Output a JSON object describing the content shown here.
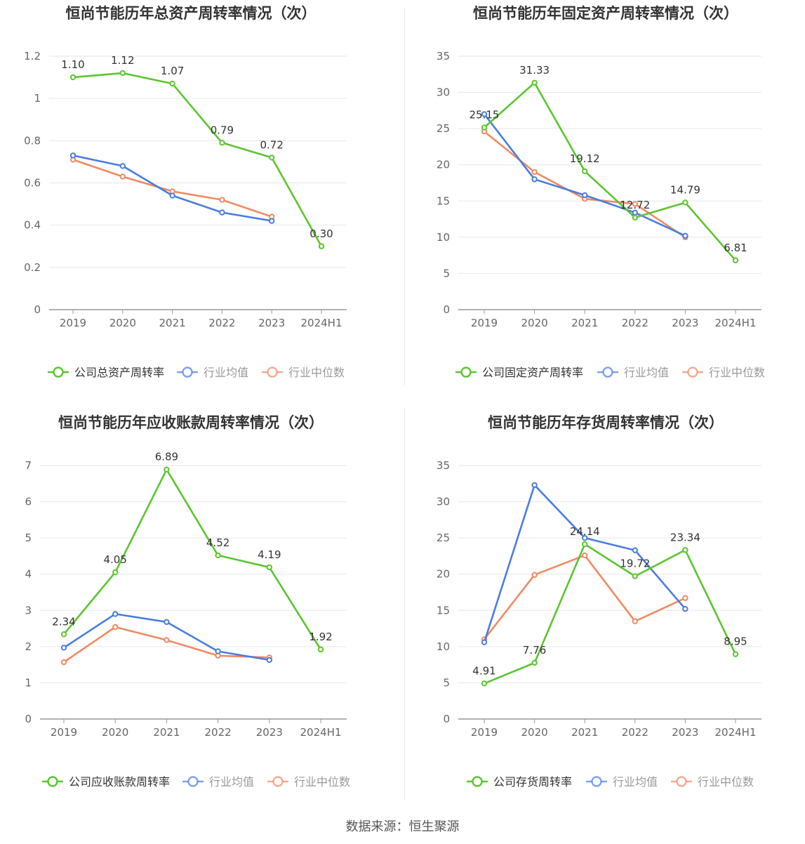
{
  "source_text": "数据来源：恒生聚源",
  "legend_labels": {
    "avg": "行业均值",
    "median": "行业中位数"
  },
  "colors": {
    "company": "#5cc530",
    "avg": "#4a7de0",
    "median": "#f08a62",
    "axis": "#999999",
    "grid": "#e6e6ee",
    "title": "#333333",
    "tick": "#666666"
  },
  "chart_data": [
    {
      "type": "line",
      "title": "恒尚节能历年总资产周转率情况（次）",
      "categories": [
        "2019",
        "2020",
        "2021",
        "2022",
        "2023",
        "2024H1"
      ],
      "ylim": [
        0,
        1.2
      ],
      "yticks": [
        "0",
        "0.2",
        "0.4",
        "0.6",
        "0.8",
        "1",
        "1.2"
      ],
      "grid": true,
      "legend": "bottom",
      "series": [
        {
          "name": "公司总资产周转率",
          "key": "company",
          "values": [
            1.1,
            1.12,
            1.07,
            0.79,
            0.72,
            0.3
          ],
          "labels": [
            "1.10",
            "1.12",
            "1.07",
            "0.79",
            "0.72",
            "0.30"
          ]
        },
        {
          "name": "行业均值",
          "key": "avg",
          "values": [
            0.73,
            0.68,
            0.54,
            0.46,
            0.42,
            null
          ]
        },
        {
          "name": "行业中位数",
          "key": "median",
          "values": [
            0.71,
            0.63,
            0.56,
            0.52,
            0.44,
            null
          ]
        }
      ]
    },
    {
      "type": "line",
      "title": "恒尚节能历年固定资产周转率情况（次）",
      "categories": [
        "2019",
        "2020",
        "2021",
        "2022",
        "2023",
        "2024H1"
      ],
      "ylim": [
        0,
        35
      ],
      "yticks": [
        "0",
        "5",
        "10",
        "15",
        "20",
        "25",
        "30",
        "35"
      ],
      "grid": true,
      "legend": "bottom",
      "series": [
        {
          "name": "公司固定资产周转率",
          "key": "company",
          "values": [
            25.15,
            31.33,
            19.12,
            12.72,
            14.79,
            6.81
          ],
          "labels": [
            "25.15",
            "31.33",
            "19.12",
            "12.72",
            "14.79",
            "6.81"
          ]
        },
        {
          "name": "行业均值",
          "key": "avg",
          "values": [
            27.0,
            18.0,
            15.8,
            13.4,
            10.2,
            null
          ]
        },
        {
          "name": "行业中位数",
          "key": "median",
          "values": [
            24.6,
            19.0,
            15.3,
            14.6,
            10.0,
            null
          ]
        }
      ]
    },
    {
      "type": "line",
      "title": "恒尚节能历年应收账款周转率情况（次）",
      "categories": [
        "2019",
        "2020",
        "2021",
        "2022",
        "2023",
        "2024H1"
      ],
      "ylim": [
        0,
        7
      ],
      "yticks": [
        "0",
        "1",
        "2",
        "3",
        "4",
        "5",
        "6",
        "7"
      ],
      "grid": true,
      "legend": "bottom",
      "series": [
        {
          "name": "公司应收账款周转率",
          "key": "company",
          "values": [
            2.34,
            4.05,
            6.89,
            4.52,
            4.19,
            1.92
          ],
          "labels": [
            "2.34",
            "4.05",
            "6.89",
            "4.52",
            "4.19",
            "1.92"
          ]
        },
        {
          "name": "行业均值",
          "key": "avg",
          "values": [
            1.97,
            2.9,
            2.68,
            1.87,
            1.63,
            null
          ]
        },
        {
          "name": "行业中位数",
          "key": "median",
          "values": [
            1.57,
            2.54,
            2.18,
            1.75,
            1.7,
            null
          ]
        }
      ]
    },
    {
      "type": "line",
      "title": "恒尚节能历年存货周转率情况（次）",
      "categories": [
        "2019",
        "2020",
        "2021",
        "2022",
        "2023",
        "2024H1"
      ],
      "ylim": [
        0,
        35
      ],
      "yticks": [
        "0",
        "5",
        "10",
        "15",
        "20",
        "25",
        "30",
        "35"
      ],
      "grid": true,
      "legend": "bottom",
      "series": [
        {
          "name": "公司存货周转率",
          "key": "company",
          "values": [
            4.91,
            7.76,
            24.14,
            19.72,
            23.34,
            8.95
          ],
          "labels": [
            "4.91",
            "7.76",
            "24.14",
            "19.72",
            "23.34",
            "8.95"
          ]
        },
        {
          "name": "行业均值",
          "key": "avg",
          "values": [
            10.6,
            32.3,
            25.0,
            23.3,
            15.2,
            null
          ]
        },
        {
          "name": "行业中位数",
          "key": "median",
          "values": [
            11.0,
            19.9,
            22.6,
            13.5,
            16.7,
            null
          ]
        }
      ]
    }
  ]
}
